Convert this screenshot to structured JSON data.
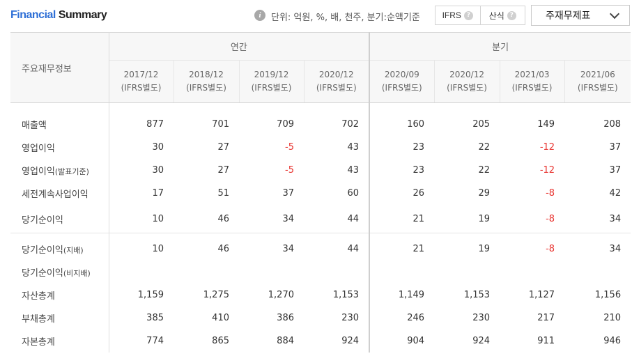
{
  "header": {
    "title_part1": "Financial",
    "title_part2": "Summary",
    "unit_text": "단위: 억원, %, 배, 천주, 분기:순액기준",
    "toggle_options": [
      "IFRS",
      "산식"
    ],
    "select_value": "주재무제표"
  },
  "table": {
    "label_header": "주요재무정보",
    "group_annual": "연간",
    "group_quarter": "분기",
    "columns": [
      {
        "period": "2017/12",
        "basis": "(IFRS별도)"
      },
      {
        "period": "2018/12",
        "basis": "(IFRS별도)"
      },
      {
        "period": "2019/12",
        "basis": "(IFRS별도)"
      },
      {
        "period": "2020/12",
        "basis": "(IFRS별도)"
      },
      {
        "period": "2020/09",
        "basis": "(IFRS별도)"
      },
      {
        "period": "2020/12",
        "basis": "(IFRS별도)"
      },
      {
        "period": "2021/03",
        "basis": "(IFRS별도)"
      },
      {
        "period": "2021/06",
        "basis": "(IFRS별도)"
      }
    ],
    "rows": [
      {
        "label": "매출액",
        "label_suffix": "",
        "values": [
          "877",
          "701",
          "709",
          "702",
          "160",
          "205",
          "149",
          "208"
        ]
      },
      {
        "label": "영업이익",
        "label_suffix": "",
        "values": [
          "30",
          "27",
          "-5",
          "43",
          "23",
          "22",
          "-12",
          "37"
        ]
      },
      {
        "label": "영업이익",
        "label_suffix": "(발표기준)",
        "values": [
          "30",
          "27",
          "-5",
          "43",
          "23",
          "22",
          "-12",
          "37"
        ]
      },
      {
        "label": "세전계속사업이익",
        "label_suffix": "",
        "values": [
          "17",
          "51",
          "37",
          "60",
          "26",
          "29",
          "-8",
          "42"
        ]
      },
      {
        "label": "당기순이익",
        "label_suffix": "",
        "values": [
          "10",
          "46",
          "34",
          "44",
          "21",
          "19",
          "-8",
          "34"
        ]
      },
      {
        "label": "당기순이익",
        "label_suffix": "(지배)",
        "values": [
          "10",
          "46",
          "34",
          "44",
          "21",
          "19",
          "-8",
          "34"
        ]
      },
      {
        "label": "당기순이익",
        "label_suffix": "(비지배)",
        "values": [
          "",
          "",
          "",
          "",
          "",
          "",
          "",
          ""
        ]
      },
      {
        "label": "자산총계",
        "label_suffix": "",
        "values": [
          "1,159",
          "1,275",
          "1,270",
          "1,153",
          "1,149",
          "1,153",
          "1,127",
          "1,156"
        ]
      },
      {
        "label": "부채총계",
        "label_suffix": "",
        "values": [
          "385",
          "410",
          "386",
          "230",
          "246",
          "230",
          "217",
          "210"
        ]
      },
      {
        "label": "자본총계",
        "label_suffix": "",
        "values": [
          "774",
          "865",
          "884",
          "924",
          "904",
          "924",
          "911",
          "946"
        ]
      }
    ]
  },
  "colors": {
    "accent": "#2e6fd6",
    "negative": "#e8322e"
  }
}
